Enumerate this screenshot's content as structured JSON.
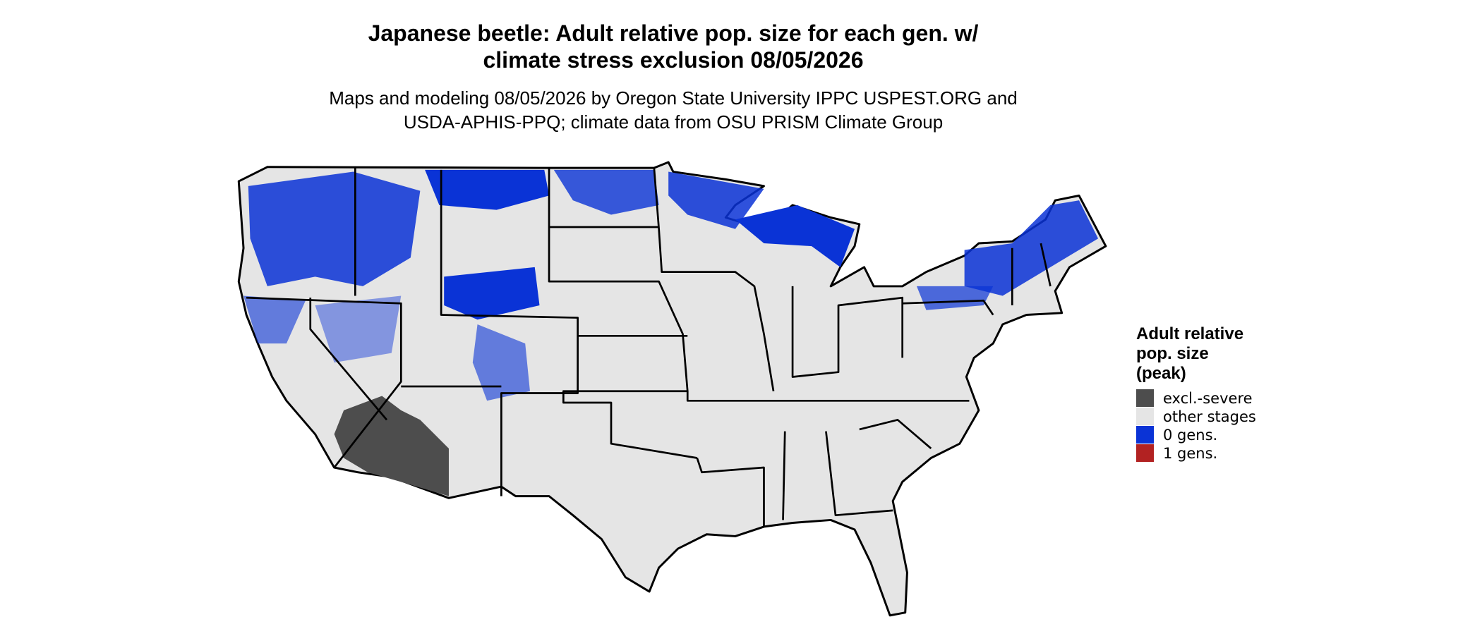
{
  "title": [
    "Japanese beetle: Adult relative pop. size for each gen. w/",
    "climate stress exclusion 08/05/2026"
  ],
  "subtitle": [
    "Maps and modeling 08/05/2026 by Oregon State University IPPC USPEST.ORG and",
    "USDA-APHIS-PPQ; climate data from OSU PRISM Climate Group"
  ],
  "legend": {
    "title": [
      "Adult relative",
      "pop. size",
      "(peak)"
    ],
    "items": [
      {
        "label": "excl.-severe",
        "color": "#4d4d4d"
      },
      {
        "label": "other stages",
        "color": "#e5e5e5"
      },
      {
        "label": "0 gens.",
        "color": "#0a33d6"
      },
      {
        "label": "1 gens.",
        "color": "#b22222"
      }
    ]
  }
}
